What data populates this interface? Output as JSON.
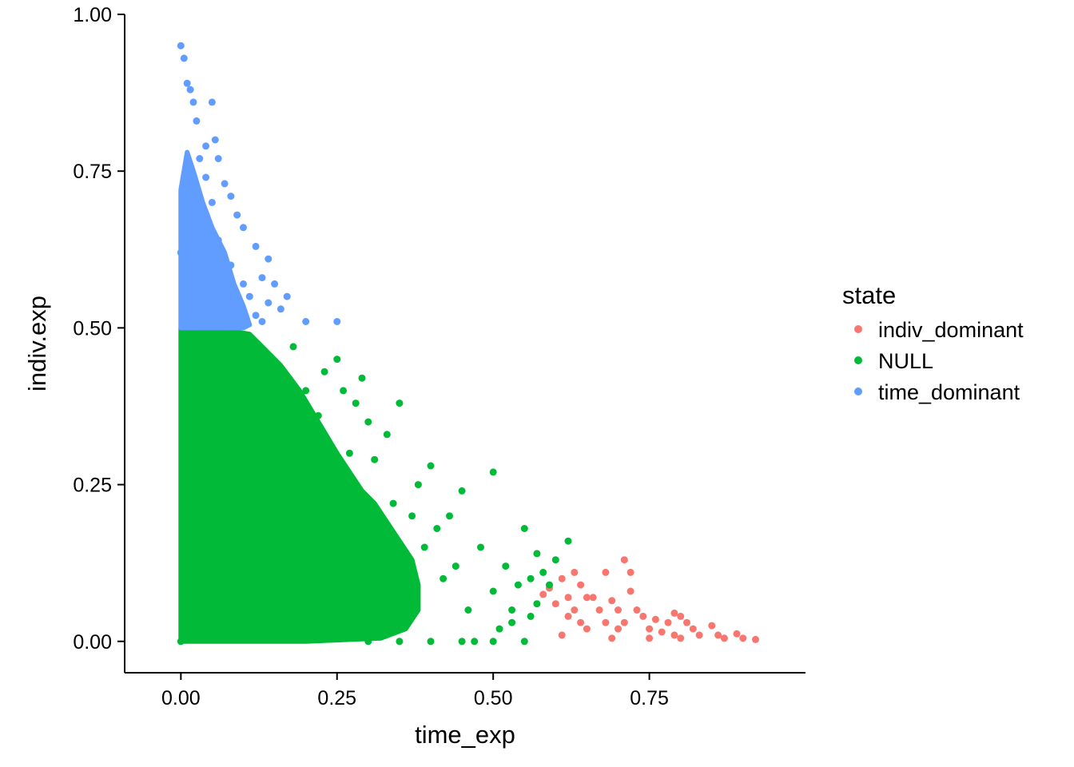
{
  "chart_data": {
    "type": "scatter",
    "title": "",
    "xlabel": "time_exp",
    "ylabel": "indiv.exp",
    "xlim": [
      -0.09,
      1.0
    ],
    "ylim": [
      -0.05,
      1.0
    ],
    "x_ticks": [
      "0.00",
      "0.25",
      "0.50",
      "0.75"
    ],
    "y_ticks": [
      "0.00",
      "0.25",
      "0.50",
      "0.75",
      "1.00"
    ],
    "grid": false,
    "legend": {
      "title": "state",
      "position": "right",
      "entries": [
        "indiv_dominant",
        "NULL",
        "time_dominant"
      ]
    },
    "series": [
      {
        "name": "indiv_dominant",
        "color": "#F8766D",
        "points": [
          [
            0.58,
            0.075
          ],
          [
            0.59,
            0.085
          ],
          [
            0.6,
            0.06
          ],
          [
            0.61,
            0.1
          ],
          [
            0.62,
            0.07
          ],
          [
            0.63,
            0.11
          ],
          [
            0.64,
            0.09
          ],
          [
            0.65,
            0.07
          ],
          [
            0.66,
            0.07
          ],
          [
            0.61,
            0.01
          ],
          [
            0.63,
            0.05
          ],
          [
            0.64,
            0.03
          ],
          [
            0.65,
            0.02
          ],
          [
            0.68,
            0.11
          ],
          [
            0.69,
            0.065
          ],
          [
            0.7,
            0.05
          ],
          [
            0.71,
            0.13
          ],
          [
            0.72,
            0.11
          ],
          [
            0.72,
            0.08
          ],
          [
            0.73,
            0.05
          ],
          [
            0.74,
            0.04
          ],
          [
            0.7,
            0.02
          ],
          [
            0.71,
            0.03
          ],
          [
            0.69,
            0.005
          ],
          [
            0.75,
            0.02
          ],
          [
            0.76,
            0.035
          ],
          [
            0.78,
            0.03
          ],
          [
            0.79,
            0.045
          ],
          [
            0.8,
            0.04
          ],
          [
            0.81,
            0.03
          ],
          [
            0.79,
            0.01
          ],
          [
            0.8,
            0.005
          ],
          [
            0.82,
            0.02
          ],
          [
            0.83,
            0.01
          ],
          [
            0.85,
            0.025
          ],
          [
            0.86,
            0.01
          ],
          [
            0.87,
            0.005
          ],
          [
            0.89,
            0.012
          ],
          [
            0.9,
            0.005
          ],
          [
            0.92,
            0.003
          ],
          [
            0.75,
            0.005
          ],
          [
            0.77,
            0.015
          ],
          [
            0.62,
            0.04
          ],
          [
            0.67,
            0.05
          ],
          [
            0.68,
            0.03
          ]
        ]
      },
      {
        "name": "NULL",
        "color": "#00BA38",
        "points": [
          [
            0.0,
            0.0
          ],
          [
            0.05,
            0.1
          ],
          [
            0.1,
            0.2
          ],
          [
            0.15,
            0.3
          ],
          [
            0.2,
            0.4
          ],
          [
            0.25,
            0.45
          ],
          [
            0.3,
            0.35
          ],
          [
            0.35,
            0.38
          ],
          [
            0.4,
            0.28
          ],
          [
            0.45,
            0.24
          ],
          [
            0.5,
            0.27
          ],
          [
            0.55,
            0.18
          ],
          [
            0.57,
            0.14
          ],
          [
            0.56,
            0.04
          ],
          [
            0.55,
            0.0
          ],
          [
            0.5,
            0.0
          ],
          [
            0.45,
            0.0
          ],
          [
            0.4,
            0.0
          ],
          [
            0.35,
            0.0
          ],
          [
            0.3,
            0.0
          ],
          [
            0.47,
            0.0
          ],
          [
            0.51,
            0.02
          ],
          [
            0.53,
            0.05
          ],
          [
            0.56,
            0.1
          ],
          [
            0.52,
            0.12
          ],
          [
            0.48,
            0.15
          ],
          [
            0.43,
            0.2
          ],
          [
            0.38,
            0.25
          ],
          [
            0.33,
            0.33
          ],
          [
            0.28,
            0.38
          ],
          [
            0.23,
            0.43
          ],
          [
            0.18,
            0.47
          ],
          [
            0.08,
            0.49
          ],
          [
            0.02,
            0.49
          ],
          [
            0.29,
            0.42
          ],
          [
            0.37,
            0.2
          ],
          [
            0.42,
            0.1
          ],
          [
            0.46,
            0.05
          ],
          [
            0.39,
            0.15
          ],
          [
            0.34,
            0.22
          ],
          [
            0.27,
            0.3
          ],
          [
            0.22,
            0.36
          ],
          [
            0.26,
            0.4
          ],
          [
            0.31,
            0.29
          ],
          [
            0.5,
            0.08
          ],
          [
            0.54,
            0.09
          ],
          [
            0.44,
            0.12
          ],
          [
            0.41,
            0.18
          ],
          [
            0.36,
            0.12
          ],
          [
            0.32,
            0.16
          ],
          [
            0.58,
            0.11
          ],
          [
            0.6,
            0.13
          ],
          [
            0.62,
            0.16
          ],
          [
            0.59,
            0.09
          ],
          [
            0.57,
            0.06
          ],
          [
            0.53,
            0.03
          ]
        ]
      },
      {
        "name": "time_dominant",
        "color": "#619CFF",
        "points": [
          [
            0.0,
            0.95
          ],
          [
            0.005,
            0.93
          ],
          [
            0.01,
            0.89
          ],
          [
            0.015,
            0.88
          ],
          [
            0.02,
            0.86
          ],
          [
            0.025,
            0.83
          ],
          [
            0.05,
            0.86
          ],
          [
            0.04,
            0.79
          ],
          [
            0.06,
            0.77
          ],
          [
            0.055,
            0.8
          ],
          [
            0.07,
            0.73
          ],
          [
            0.08,
            0.71
          ],
          [
            0.09,
            0.68
          ],
          [
            0.1,
            0.66
          ],
          [
            0.12,
            0.63
          ],
          [
            0.14,
            0.61
          ],
          [
            0.13,
            0.58
          ],
          [
            0.15,
            0.57
          ],
          [
            0.17,
            0.55
          ],
          [
            0.2,
            0.51
          ],
          [
            0.25,
            0.51
          ],
          [
            0.11,
            0.55
          ],
          [
            0.09,
            0.53
          ],
          [
            0.07,
            0.58
          ],
          [
            0.06,
            0.64
          ],
          [
            0.05,
            0.7
          ],
          [
            0.04,
            0.74
          ],
          [
            0.03,
            0.77
          ],
          [
            0.02,
            0.72
          ],
          [
            0.01,
            0.67
          ],
          [
            0.0,
            0.62
          ],
          [
            0.01,
            0.56
          ],
          [
            0.02,
            0.52
          ],
          [
            0.03,
            0.6
          ],
          [
            0.04,
            0.55
          ],
          [
            0.08,
            0.6
          ],
          [
            0.1,
            0.57
          ],
          [
            0.12,
            0.52
          ],
          [
            0.14,
            0.54
          ],
          [
            0.16,
            0.53
          ],
          [
            0.13,
            0.51
          ]
        ]
      }
    ],
    "dense_regions": [
      {
        "series": "NULL",
        "polygon": [
          [
            0.0,
            0.0
          ],
          [
            0.0,
            0.5
          ],
          [
            0.05,
            0.5
          ],
          [
            0.08,
            0.495
          ],
          [
            0.11,
            0.49
          ],
          [
            0.13,
            0.47
          ],
          [
            0.16,
            0.44
          ],
          [
            0.19,
            0.4
          ],
          [
            0.22,
            0.35
          ],
          [
            0.25,
            0.3
          ],
          [
            0.27,
            0.27
          ],
          [
            0.29,
            0.24
          ],
          [
            0.31,
            0.22
          ],
          [
            0.33,
            0.19
          ],
          [
            0.35,
            0.16
          ],
          [
            0.37,
            0.13
          ],
          [
            0.38,
            0.09
          ],
          [
            0.38,
            0.05
          ],
          [
            0.36,
            0.02
          ],
          [
            0.32,
            0.005
          ],
          [
            0.2,
            0.0
          ]
        ]
      },
      {
        "series": "time_dominant",
        "polygon": [
          [
            0.0,
            0.5
          ],
          [
            0.0,
            0.72
          ],
          [
            0.01,
            0.78
          ],
          [
            0.02,
            0.75
          ],
          [
            0.035,
            0.7
          ],
          [
            0.05,
            0.66
          ],
          [
            0.07,
            0.62
          ],
          [
            0.085,
            0.57
          ],
          [
            0.1,
            0.535
          ],
          [
            0.11,
            0.505
          ],
          [
            0.1,
            0.5
          ]
        ]
      }
    ]
  }
}
